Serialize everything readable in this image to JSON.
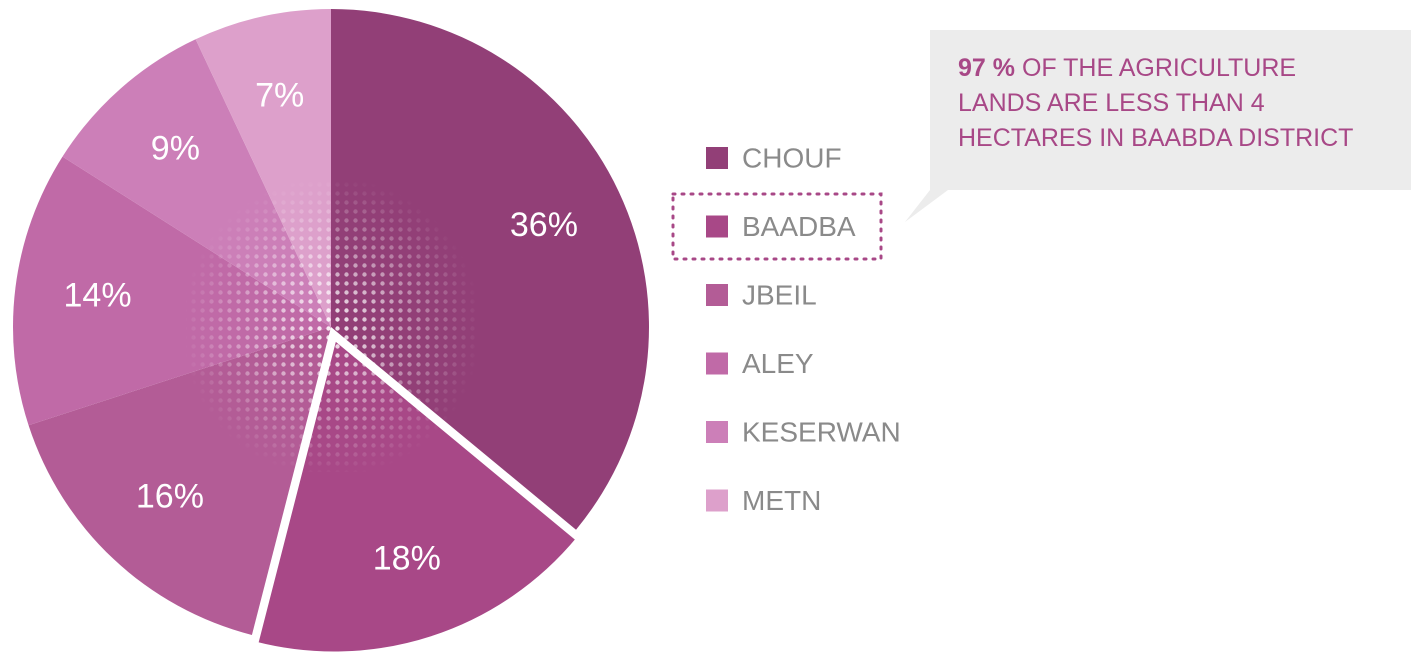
{
  "chart_data": {
    "type": "pie",
    "categories": [
      "CHOUF",
      "BAADBA",
      "JBEIL",
      "ALEY",
      "KESERWAN",
      "METN"
    ],
    "values": [
      36,
      18,
      16,
      14,
      9,
      7
    ],
    "value_labels": [
      "36%",
      "18%",
      "16%",
      "14%",
      "9%",
      "7%"
    ],
    "colors": [
      "#923f77",
      "#a84887",
      "#b35c96",
      "#c06aa7",
      "#cc7fb8",
      "#dda0cb"
    ],
    "explode_index": 1,
    "annotation": {
      "highlight": "97 %",
      "lines": [
        "OF THE AGRICULTURE",
        "LANDS ARE LESS THAN 4",
        "HECTARES IN BAABDA DISTRICT"
      ]
    }
  }
}
